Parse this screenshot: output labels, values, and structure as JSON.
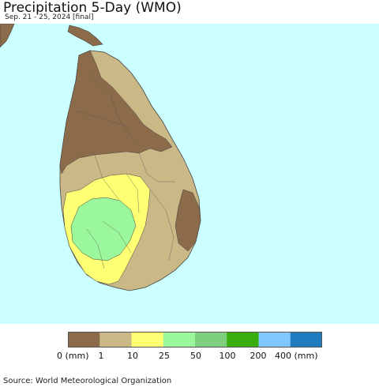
{
  "title": "Precipitation 5-Day (WMO)",
  "subtitle": "Sep. 21 - 25, 2024 [final]",
  "source": "Source: World Meteorological Organization",
  "map": {
    "region": "Sri Lanka",
    "water_color": "#ccffff",
    "land_color_outside": "#8b6b4a"
  },
  "legend": {
    "colors": [
      "#8b6b4a",
      "#cbb887",
      "#ffff73",
      "#9bf79b",
      "#7ecf7e",
      "#39ad0d",
      "#80c6ff",
      "#1f7dbf"
    ],
    "labels": [
      "0 (mm)",
      "1",
      "10",
      "25",
      "50",
      "100",
      "200",
      "400 (mm)"
    ]
  }
}
